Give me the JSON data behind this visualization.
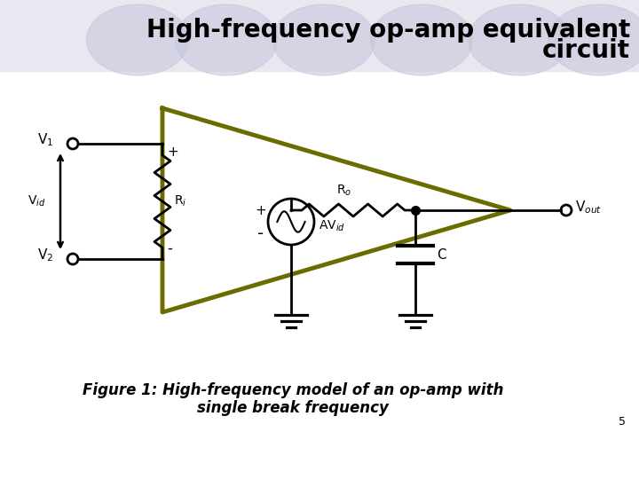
{
  "title_line1": "High-frequency op-amp equivalent",
  "title_line2": "circuit",
  "title_fontsize": 20,
  "title_color": "#000000",
  "bg_color": "#ffffff",
  "figure_caption_line1": "Figure 1: High-frequency model of an op-amp with",
  "figure_caption_line2": "single break frequency",
  "caption_fontsize": 12,
  "page_number": "5",
  "opamp_color": "#6b6b00",
  "circuit_color": "#000000",
  "circuit_lw": 2.0,
  "header_circle_color": "#c8c8dc",
  "header_circle_alpha": 0.6,
  "header_bg_color": "#e8e8f0"
}
